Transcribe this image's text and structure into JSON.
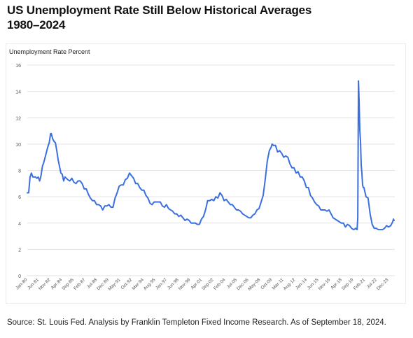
{
  "title_line1": "US Unemployment Rate Still Below Historical Averages",
  "title_line2": "1980–2024",
  "source": "Source: St. Louis Fed. Analysis by Franklin Templeton Fixed Income Research. As of September 18, 2024.",
  "colors": {
    "line": "#3b6fe0",
    "grid": "#e3e3e3",
    "text": "#111111",
    "tick_text": "#555555"
  },
  "chart_data": {
    "type": "line",
    "title": "US Unemployment Rate Still Below Historical Averages 1980–2024",
    "ylabel": "Unemployment Rate Percent",
    "xlabel": "",
    "ylim": [
      0,
      16
    ],
    "yticks": [
      0,
      2,
      4,
      6,
      8,
      10,
      12,
      14,
      16
    ],
    "grid": true,
    "legend": "none",
    "x_tick_labels": [
      "Jan-80",
      "Jun-81",
      "Nov-82",
      "Apr-84",
      "Sep-85",
      "Feb-87",
      "Jul-88",
      "Dec-89",
      "May-91",
      "Oct-92",
      "Mar-94",
      "Aug-95",
      "Jan-97",
      "Jun-98",
      "Nov-99",
      "Apr-01",
      "Sep-02",
      "Feb-04",
      "Jul-05",
      "Dec-06",
      "May-08",
      "Oct-09",
      "Mar-11",
      "Aug-12",
      "Jan-14",
      "Jun-15",
      "Nov-16",
      "Apr-18",
      "Sep-19",
      "Feb-21",
      "Jul-22",
      "Dec-23"
    ],
    "series": [
      {
        "values": [
          [
            "1980-01",
            6.3
          ],
          [
            "1980-03",
            6.3
          ],
          [
            "1980-05",
            7.5
          ],
          [
            "1980-07",
            7.8
          ],
          [
            "1980-09",
            7.5
          ],
          [
            "1980-11",
            7.5
          ],
          [
            "1981-01",
            7.5
          ],
          [
            "1981-03",
            7.4
          ],
          [
            "1981-05",
            7.5
          ],
          [
            "1981-07",
            7.2
          ],
          [
            "1981-09",
            7.6
          ],
          [
            "1981-11",
            8.3
          ],
          [
            "1982-01",
            8.6
          ],
          [
            "1982-03",
            9.0
          ],
          [
            "1982-05",
            9.4
          ],
          [
            "1982-07",
            9.8
          ],
          [
            "1982-09",
            10.1
          ],
          [
            "1982-11",
            10.8
          ],
          [
            "1982-12",
            10.8
          ],
          [
            "1983-02",
            10.4
          ],
          [
            "1983-04",
            10.2
          ],
          [
            "1983-06",
            10.1
          ],
          [
            "1983-08",
            9.5
          ],
          [
            "1983-10",
            8.8
          ],
          [
            "1983-12",
            8.3
          ],
          [
            "1984-02",
            7.8
          ],
          [
            "1984-04",
            7.7
          ],
          [
            "1984-06",
            7.2
          ],
          [
            "1984-08",
            7.5
          ],
          [
            "1984-10",
            7.4
          ],
          [
            "1984-12",
            7.3
          ],
          [
            "1985-03",
            7.2
          ],
          [
            "1985-06",
            7.4
          ],
          [
            "1985-09",
            7.1
          ],
          [
            "1985-12",
            7.0
          ],
          [
            "1986-03",
            7.2
          ],
          [
            "1986-06",
            7.2
          ],
          [
            "1986-09",
            7.0
          ],
          [
            "1986-12",
            6.6
          ],
          [
            "1987-03",
            6.6
          ],
          [
            "1987-06",
            6.2
          ],
          [
            "1987-09",
            5.9
          ],
          [
            "1987-12",
            5.7
          ],
          [
            "1988-03",
            5.7
          ],
          [
            "1988-06",
            5.4
          ],
          [
            "1988-09",
            5.4
          ],
          [
            "1988-12",
            5.3
          ],
          [
            "1989-03",
            5.0
          ],
          [
            "1989-06",
            5.3
          ],
          [
            "1989-09",
            5.3
          ],
          [
            "1989-12",
            5.4
          ],
          [
            "1990-03",
            5.2
          ],
          [
            "1990-06",
            5.2
          ],
          [
            "1990-09",
            5.9
          ],
          [
            "1990-12",
            6.3
          ],
          [
            "1991-03",
            6.8
          ],
          [
            "1991-06",
            6.9
          ],
          [
            "1991-09",
            6.9
          ],
          [
            "1991-12",
            7.3
          ],
          [
            "1992-03",
            7.4
          ],
          [
            "1992-06",
            7.8
          ],
          [
            "1992-09",
            7.6
          ],
          [
            "1992-12",
            7.4
          ],
          [
            "1993-03",
            7.0
          ],
          [
            "1993-06",
            7.0
          ],
          [
            "1993-09",
            6.7
          ],
          [
            "1993-12",
            6.5
          ],
          [
            "1994-03",
            6.5
          ],
          [
            "1994-06",
            6.1
          ],
          [
            "1994-09",
            5.9
          ],
          [
            "1994-12",
            5.5
          ],
          [
            "1995-03",
            5.4
          ],
          [
            "1995-06",
            5.6
          ],
          [
            "1995-09",
            5.6
          ],
          [
            "1995-12",
            5.6
          ],
          [
            "1996-03",
            5.6
          ],
          [
            "1996-06",
            5.3
          ],
          [
            "1996-09",
            5.2
          ],
          [
            "1996-12",
            5.4
          ],
          [
            "1997-03",
            5.1
          ],
          [
            "1997-06",
            5.0
          ],
          [
            "1997-09",
            4.9
          ],
          [
            "1997-12",
            4.7
          ],
          [
            "1998-03",
            4.7
          ],
          [
            "1998-06",
            4.5
          ],
          [
            "1998-09",
            4.6
          ],
          [
            "1998-12",
            4.4
          ],
          [
            "1999-03",
            4.2
          ],
          [
            "1999-06",
            4.3
          ],
          [
            "1999-09",
            4.2
          ],
          [
            "1999-12",
            4.0
          ],
          [
            "2000-03",
            4.0
          ],
          [
            "2000-06",
            4.0
          ],
          [
            "2000-09",
            3.9
          ],
          [
            "2000-12",
            3.9
          ],
          [
            "2001-03",
            4.3
          ],
          [
            "2001-06",
            4.5
          ],
          [
            "2001-09",
            5.0
          ],
          [
            "2001-12",
            5.7
          ],
          [
            "2002-03",
            5.7
          ],
          [
            "2002-06",
            5.8
          ],
          [
            "2002-09",
            5.7
          ],
          [
            "2002-12",
            6.0
          ],
          [
            "2003-03",
            5.9
          ],
          [
            "2003-06",
            6.3
          ],
          [
            "2003-09",
            6.1
          ],
          [
            "2003-12",
            5.7
          ],
          [
            "2004-03",
            5.8
          ],
          [
            "2004-06",
            5.6
          ],
          [
            "2004-09",
            5.4
          ],
          [
            "2004-12",
            5.4
          ],
          [
            "2005-03",
            5.2
          ],
          [
            "2005-06",
            5.0
          ],
          [
            "2005-09",
            5.0
          ],
          [
            "2005-12",
            4.9
          ],
          [
            "2006-03",
            4.7
          ],
          [
            "2006-06",
            4.6
          ],
          [
            "2006-09",
            4.5
          ],
          [
            "2006-12",
            4.4
          ],
          [
            "2007-03",
            4.4
          ],
          [
            "2007-06",
            4.6
          ],
          [
            "2007-09",
            4.7
          ],
          [
            "2007-12",
            5.0
          ],
          [
            "2008-03",
            5.1
          ],
          [
            "2008-06",
            5.6
          ],
          [
            "2008-09",
            6.1
          ],
          [
            "2008-12",
            7.3
          ],
          [
            "2009-03",
            8.7
          ],
          [
            "2009-06",
            9.5
          ],
          [
            "2009-09",
            9.8
          ],
          [
            "2009-10",
            10.0
          ],
          [
            "2009-12",
            9.9
          ],
          [
            "2010-03",
            9.9
          ],
          [
            "2010-06",
            9.4
          ],
          [
            "2010-09",
            9.5
          ],
          [
            "2010-12",
            9.3
          ],
          [
            "2011-03",
            9.0
          ],
          [
            "2011-06",
            9.1
          ],
          [
            "2011-09",
            9.0
          ],
          [
            "2011-12",
            8.5
          ],
          [
            "2012-03",
            8.2
          ],
          [
            "2012-06",
            8.2
          ],
          [
            "2012-09",
            7.8
          ],
          [
            "2012-12",
            7.9
          ],
          [
            "2013-03",
            7.5
          ],
          [
            "2013-06",
            7.5
          ],
          [
            "2013-09",
            7.2
          ],
          [
            "2013-12",
            6.7
          ],
          [
            "2014-03",
            6.7
          ],
          [
            "2014-06",
            6.1
          ],
          [
            "2014-09",
            5.9
          ],
          [
            "2014-12",
            5.6
          ],
          [
            "2015-03",
            5.4
          ],
          [
            "2015-06",
            5.3
          ],
          [
            "2015-09",
            5.0
          ],
          [
            "2015-12",
            5.0
          ],
          [
            "2016-03",
            5.0
          ],
          [
            "2016-06",
            4.9
          ],
          [
            "2016-09",
            5.0
          ],
          [
            "2016-12",
            4.7
          ],
          [
            "2017-03",
            4.4
          ],
          [
            "2017-06",
            4.3
          ],
          [
            "2017-09",
            4.2
          ],
          [
            "2017-12",
            4.1
          ],
          [
            "2018-03",
            4.0
          ],
          [
            "2018-06",
            4.0
          ],
          [
            "2018-09",
            3.7
          ],
          [
            "2018-12",
            3.9
          ],
          [
            "2019-03",
            3.8
          ],
          [
            "2019-06",
            3.6
          ],
          [
            "2019-09",
            3.5
          ],
          [
            "2019-12",
            3.6
          ],
          [
            "2020-02",
            3.5
          ],
          [
            "2020-03",
            4.4
          ],
          [
            "2020-04",
            14.8
          ],
          [
            "2020-05",
            13.2
          ],
          [
            "2020-06",
            11.0
          ],
          [
            "2020-07",
            10.2
          ],
          [
            "2020-08",
            8.4
          ],
          [
            "2020-09",
            7.8
          ],
          [
            "2020-10",
            6.9
          ],
          [
            "2020-11",
            6.7
          ],
          [
            "2020-12",
            6.7
          ],
          [
            "2021-03",
            6.0
          ],
          [
            "2021-06",
            5.9
          ],
          [
            "2021-09",
            4.7
          ],
          [
            "2021-12",
            3.9
          ],
          [
            "2022-03",
            3.6
          ],
          [
            "2022-06",
            3.6
          ],
          [
            "2022-09",
            3.5
          ],
          [
            "2022-12",
            3.5
          ],
          [
            "2023-03",
            3.5
          ],
          [
            "2023-06",
            3.6
          ],
          [
            "2023-09",
            3.8
          ],
          [
            "2023-12",
            3.7
          ],
          [
            "2024-03",
            3.8
          ],
          [
            "2024-06",
            4.1
          ],
          [
            "2024-07",
            4.3
          ],
          [
            "2024-08",
            4.2
          ]
        ]
      }
    ]
  }
}
